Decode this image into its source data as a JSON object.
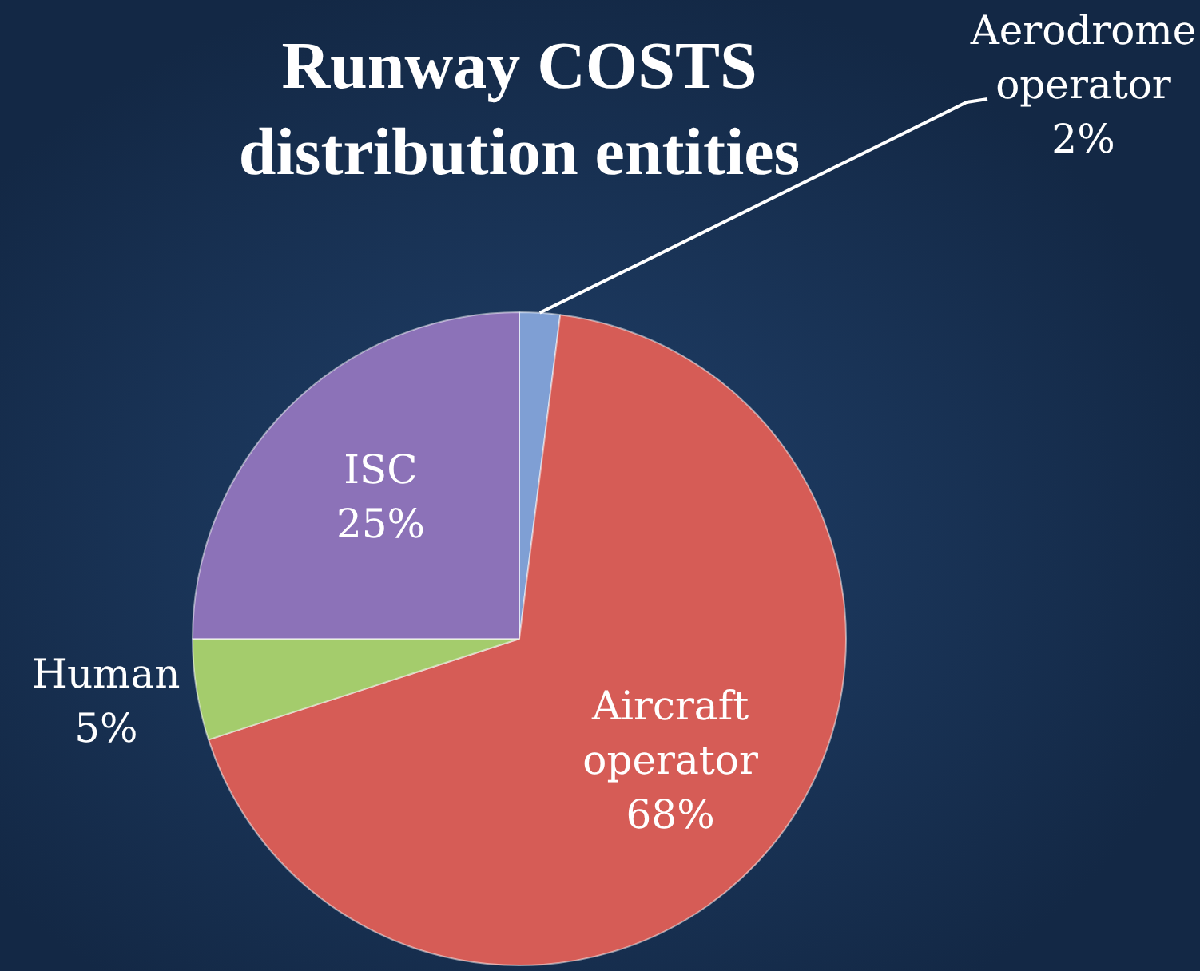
{
  "chart_data": {
    "type": "pie",
    "title": "Runway COSTS\ndistribution entities",
    "categories": [
      "Aerodrome\noperator",
      "Aircraft\noperator",
      "Human",
      "ISC"
    ],
    "values": [
      2,
      68,
      5,
      25
    ],
    "colors": [
      "#7f9fd4",
      "#d65c56",
      "#a4cc6c",
      "#8c72b8"
    ],
    "value_labels": [
      "2%",
      "68%",
      "5%",
      "25%"
    ],
    "legend": false
  }
}
